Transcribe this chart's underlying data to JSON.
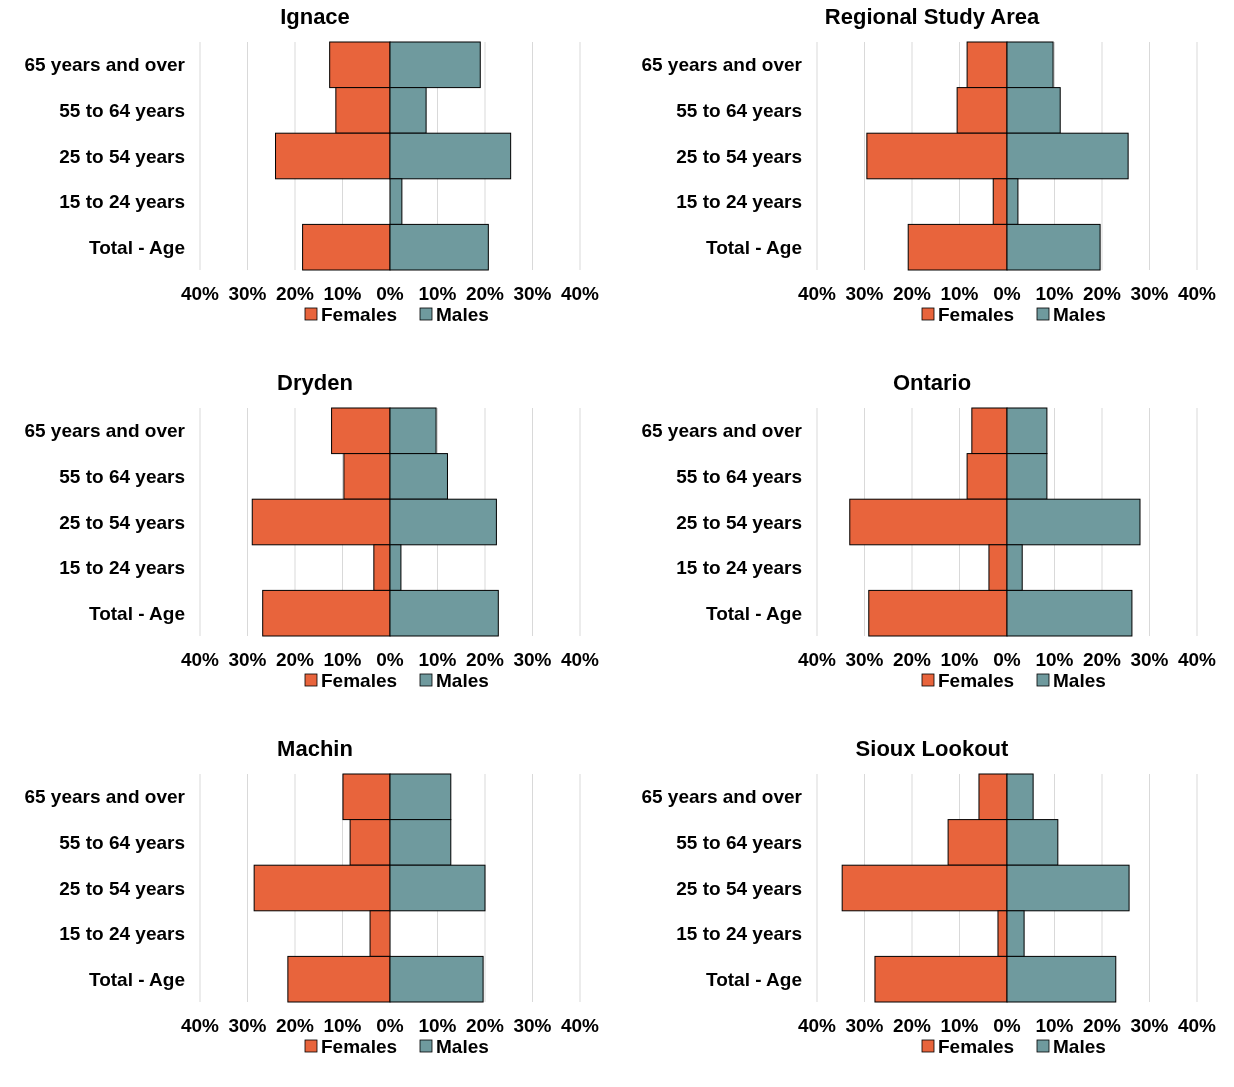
{
  "chart_data": [
    {
      "type": "bar",
      "orientation": "horizontal",
      "stacked": true,
      "title": "Ignace",
      "categories": [
        "65 years and over",
        "55 to 64 years",
        "25 to 54 years",
        "15 to 24 years",
        "Total - Age"
      ],
      "series": [
        {
          "name": "Females",
          "color": "#e8643c",
          "values": [
            -12.7,
            -11.4,
            -24.1,
            0,
            -18.4
          ]
        },
        {
          "name": "Males",
          "color": "#6f9a9e",
          "values": [
            19.0,
            7.6,
            25.4,
            2.5,
            20.7
          ]
        }
      ],
      "xlim": [
        -40,
        40
      ],
      "xticks": [
        {
          "value": -40,
          "label": "40%"
        },
        {
          "value": -30,
          "label": "30%"
        },
        {
          "value": -20,
          "label": "20%"
        },
        {
          "value": -10,
          "label": "10%"
        },
        {
          "value": 0,
          "label": "0%"
        },
        {
          "value": 10,
          "label": "10%"
        },
        {
          "value": 20,
          "label": "20%"
        },
        {
          "value": 30,
          "label": "30%"
        },
        {
          "value": 40,
          "label": "40%"
        }
      ],
      "grid": "x",
      "legend": "bottom"
    },
    {
      "type": "bar",
      "orientation": "horizontal",
      "stacked": true,
      "title": "Regional Study Area",
      "categories": [
        "65 years and over",
        "55 to 64 years",
        "25 to 54 years",
        "15 to 24 years",
        "Total - Age"
      ],
      "series": [
        {
          "name": "Females",
          "color": "#e8643c",
          "values": [
            -8.4,
            -10.5,
            -29.5,
            -2.9,
            -20.8
          ]
        },
        {
          "name": "Males",
          "color": "#6f9a9e",
          "values": [
            9.7,
            11.2,
            25.5,
            2.3,
            19.6
          ]
        }
      ],
      "xlim": [
        -40,
        40
      ],
      "xticks": [
        {
          "value": -40,
          "label": "40%"
        },
        {
          "value": -30,
          "label": "30%"
        },
        {
          "value": -20,
          "label": "20%"
        },
        {
          "value": -10,
          "label": "10%"
        },
        {
          "value": 0,
          "label": "0%"
        },
        {
          "value": 10,
          "label": "10%"
        },
        {
          "value": 20,
          "label": "20%"
        },
        {
          "value": 30,
          "label": "30%"
        },
        {
          "value": 40,
          "label": "40%"
        }
      ],
      "grid": "x",
      "legend": "bottom"
    },
    {
      "type": "bar",
      "orientation": "horizontal",
      "stacked": true,
      "title": "Dryden",
      "categories": [
        "65 years and over",
        "55 to 64 years",
        "25 to 54 years",
        "15 to 24 years",
        "Total - Age"
      ],
      "series": [
        {
          "name": "Females",
          "color": "#e8643c",
          "values": [
            -12.3,
            -9.7,
            -29.0,
            -3.4,
            -26.8
          ]
        },
        {
          "name": "Males",
          "color": "#6f9a9e",
          "values": [
            9.7,
            12.1,
            22.4,
            2.3,
            22.8
          ]
        }
      ],
      "xlim": [
        -40,
        40
      ],
      "xticks": [
        {
          "value": -40,
          "label": "40%"
        },
        {
          "value": -30,
          "label": "30%"
        },
        {
          "value": -20,
          "label": "20%"
        },
        {
          "value": -10,
          "label": "10%"
        },
        {
          "value": 0,
          "label": "0%"
        },
        {
          "value": 10,
          "label": "10%"
        },
        {
          "value": 20,
          "label": "20%"
        },
        {
          "value": 30,
          "label": "30%"
        },
        {
          "value": 40,
          "label": "40%"
        }
      ],
      "grid": "x",
      "legend": "bottom"
    },
    {
      "type": "bar",
      "orientation": "horizontal",
      "stacked": true,
      "title": "Ontario",
      "categories": [
        "65 years and over",
        "55 to 64 years",
        "25 to 54 years",
        "15 to 24 years",
        "Total - Age"
      ],
      "series": [
        {
          "name": "Females",
          "color": "#e8643c",
          "values": [
            -7.4,
            -8.4,
            -33.1,
            -3.8,
            -29.1
          ]
        },
        {
          "name": "Males",
          "color": "#6f9a9e",
          "values": [
            8.4,
            8.4,
            28.0,
            3.2,
            26.3
          ]
        }
      ],
      "xlim": [
        -40,
        40
      ],
      "xticks": [
        {
          "value": -40,
          "label": "40%"
        },
        {
          "value": -30,
          "label": "30%"
        },
        {
          "value": -20,
          "label": "20%"
        },
        {
          "value": -10,
          "label": "10%"
        },
        {
          "value": 0,
          "label": "0%"
        },
        {
          "value": 10,
          "label": "10%"
        },
        {
          "value": 20,
          "label": "20%"
        },
        {
          "value": 30,
          "label": "30%"
        },
        {
          "value": 40,
          "label": "40%"
        }
      ],
      "grid": "x",
      "legend": "bottom"
    },
    {
      "type": "bar",
      "orientation": "horizontal",
      "stacked": true,
      "title": "Machin",
      "categories": [
        "65 years and over",
        "55 to 64 years",
        "25 to 54 years",
        "15 to 24 years",
        "Total - Age"
      ],
      "series": [
        {
          "name": "Females",
          "color": "#e8643c",
          "values": [
            -9.9,
            -8.4,
            -28.6,
            -4.2,
            -21.5
          ]
        },
        {
          "name": "Males",
          "color": "#6f9a9e",
          "values": [
            12.8,
            12.8,
            20.0,
            0,
            19.6
          ]
        }
      ],
      "xlim": [
        -40,
        40
      ],
      "xticks": [
        {
          "value": -40,
          "label": "40%"
        },
        {
          "value": -30,
          "label": "30%"
        },
        {
          "value": -20,
          "label": "20%"
        },
        {
          "value": -10,
          "label": "10%"
        },
        {
          "value": 0,
          "label": "0%"
        },
        {
          "value": 10,
          "label": "10%"
        },
        {
          "value": 20,
          "label": "20%"
        },
        {
          "value": 30,
          "label": "30%"
        },
        {
          "value": 40,
          "label": "40%"
        }
      ],
      "grid": "x",
      "legend": "bottom"
    },
    {
      "type": "bar",
      "orientation": "horizontal",
      "stacked": true,
      "title": "Sioux Lookout",
      "categories": [
        "65 years and over",
        "55 to 64 years",
        "25 to 54 years",
        "15 to 24 years",
        "Total - Age"
      ],
      "series": [
        {
          "name": "Females",
          "color": "#e8643c",
          "values": [
            -5.9,
            -12.4,
            -34.7,
            -1.9,
            -27.8
          ]
        },
        {
          "name": "Males",
          "color": "#6f9a9e",
          "values": [
            5.5,
            10.7,
            25.7,
            3.6,
            22.9
          ]
        }
      ],
      "xlim": [
        -40,
        40
      ],
      "xticks": [
        {
          "value": -40,
          "label": "40%"
        },
        {
          "value": -30,
          "label": "30%"
        },
        {
          "value": -20,
          "label": "20%"
        },
        {
          "value": -10,
          "label": "10%"
        },
        {
          "value": 0,
          "label": "0%"
        },
        {
          "value": 10,
          "label": "10%"
        },
        {
          "value": 20,
          "label": "20%"
        },
        {
          "value": 30,
          "label": "30%"
        },
        {
          "value": 40,
          "label": "40%"
        }
      ],
      "grid": "x",
      "legend": "bottom"
    }
  ]
}
